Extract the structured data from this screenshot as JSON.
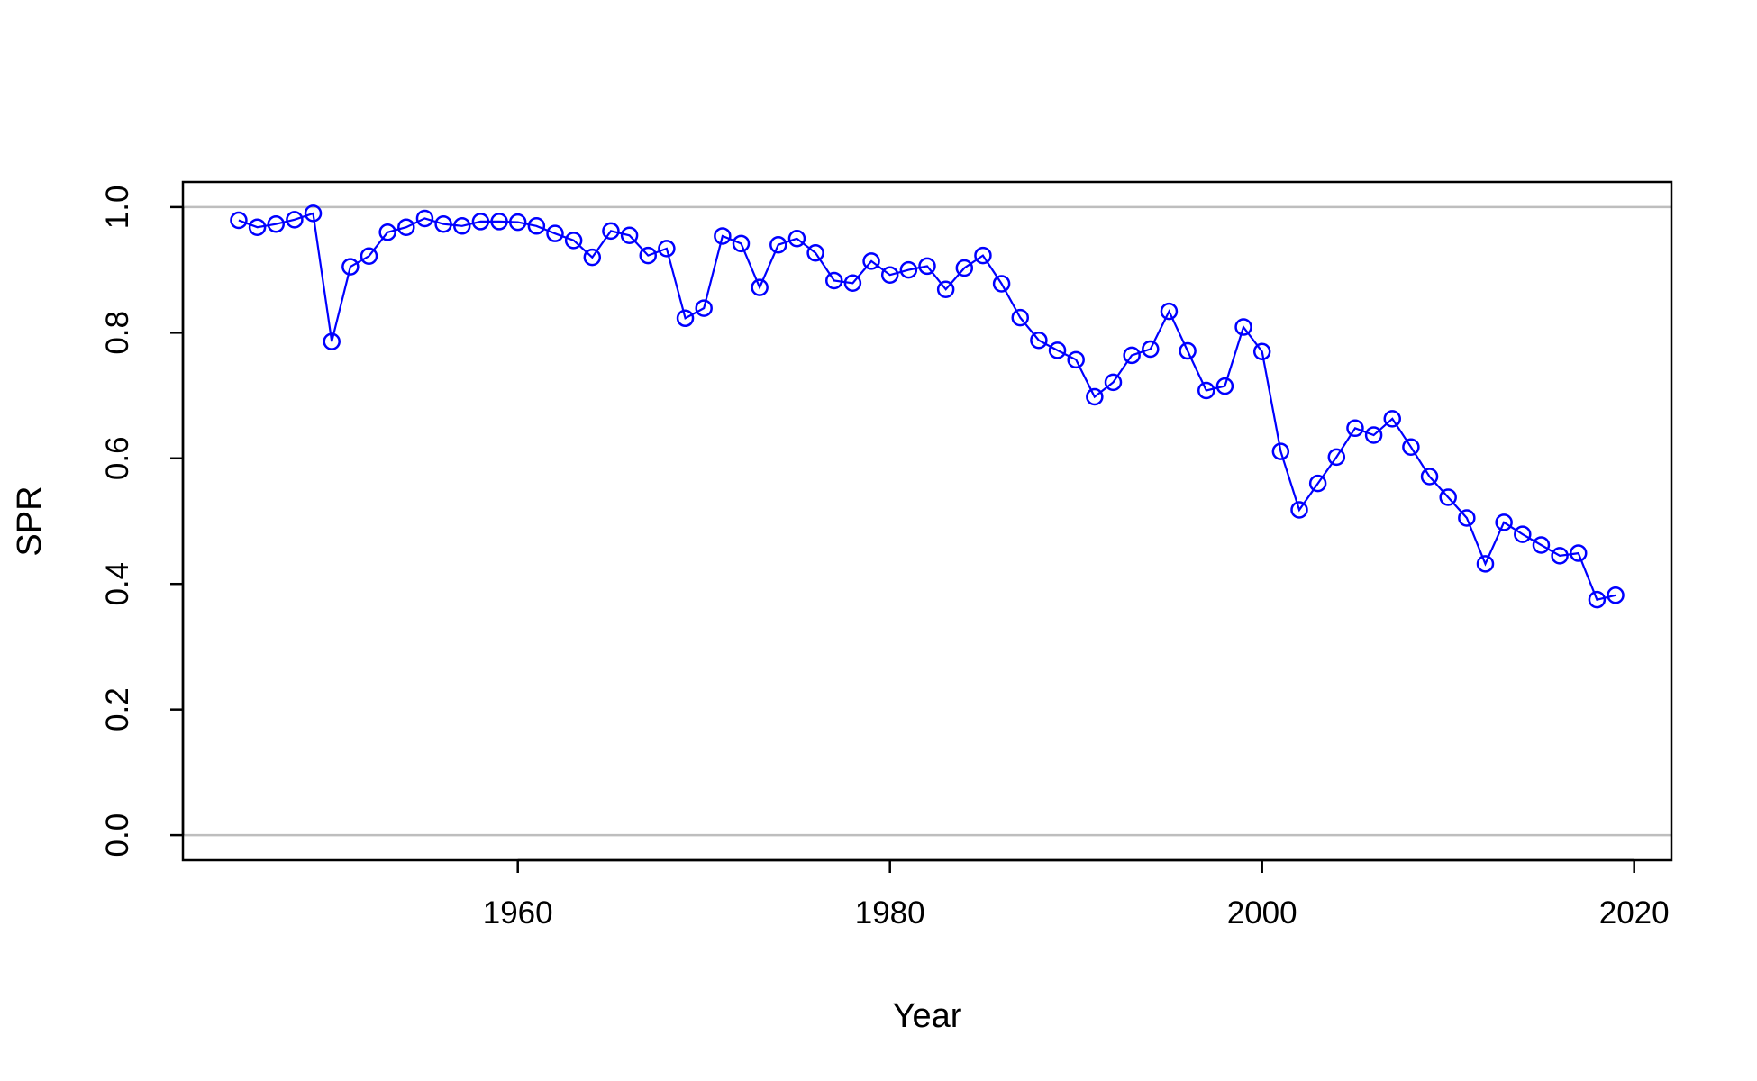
{
  "chart_data": {
    "type": "line",
    "title": "",
    "xlabel": "Year",
    "ylabel": "SPR",
    "xlim": [
      1942,
      2022
    ],
    "ylim": [
      -0.04,
      1.04
    ],
    "x_ticks": [
      1960,
      1980,
      2000,
      2020
    ],
    "y_ticks": [
      "0.0",
      "0.2",
      "0.4",
      "0.6",
      "0.8",
      "1.0"
    ],
    "reference_lines": [
      0,
      1
    ],
    "reference_line_color": "#bebebe",
    "series_color": "#0000ff",
    "marker": "open-circle",
    "grid": false,
    "series": [
      {
        "x": [
          1945,
          1946,
          1947,
          1948,
          1949,
          1950,
          1951,
          1952,
          1953,
          1954,
          1955,
          1956,
          1957,
          1958,
          1959,
          1960,
          1961,
          1962,
          1963,
          1964,
          1965,
          1966,
          1967,
          1968,
          1969,
          1970,
          1971,
          1972,
          1973,
          1974,
          1975,
          1976,
          1977,
          1978,
          1979,
          1980,
          1981,
          1982,
          1983,
          1984,
          1985,
          1986,
          1987,
          1988,
          1989,
          1990,
          1991,
          1992,
          1993,
          1994,
          1995,
          1996,
          1997,
          1998,
          1999,
          2000,
          2001,
          2002,
          2003,
          2004,
          2005,
          2006,
          2007,
          2008,
          2009,
          2010,
          2011,
          2012,
          2013,
          2014,
          2015,
          2016,
          2017,
          2018,
          2019
        ],
        "y": [
          0.979,
          0.968,
          0.973,
          0.98,
          0.99,
          0.786,
          0.905,
          0.922,
          0.96,
          0.968,
          0.982,
          0.973,
          0.97,
          0.977,
          0.977,
          0.976,
          0.97,
          0.958,
          0.947,
          0.92,
          0.962,
          0.955,
          0.923,
          0.934,
          0.823,
          0.839,
          0.954,
          0.942,
          0.872,
          0.94,
          0.95,
          0.927,
          0.883,
          0.879,
          0.914,
          0.892,
          0.9,
          0.906,
          0.869,
          0.903,
          0.923,
          0.878,
          0.824,
          0.788,
          0.772,
          0.757,
          0.698,
          0.721,
          0.764,
          0.774,
          0.834,
          0.771,
          0.708,
          0.715,
          0.809,
          0.77,
          0.611,
          0.518,
          0.56,
          0.602,
          0.648,
          0.637,
          0.663,
          0.618,
          0.571,
          0.538,
          0.505,
          0.432,
          0.498,
          0.479,
          0.462,
          0.445,
          0.449,
          0.375,
          0.382
        ]
      }
    ]
  }
}
